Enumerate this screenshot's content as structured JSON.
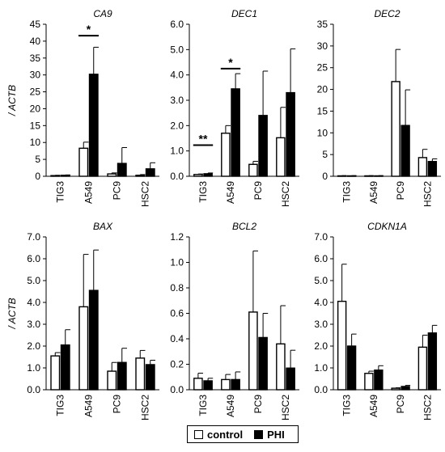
{
  "chart_data": [
    {
      "type": "bar",
      "title": "CA9",
      "ylabel": "/ ACTB",
      "ylim": [
        0,
        45
      ],
      "yticks": [
        "0",
        "5",
        "10",
        "15",
        "20",
        "25",
        "30",
        "35",
        "40",
        "45"
      ],
      "categories": [
        "TIG3",
        "A549",
        "PC9",
        "HSC2"
      ],
      "series": [
        {
          "name": "control",
          "values": [
            0.2,
            8.3,
            0.7,
            0.3
          ],
          "errors": [
            0.1,
            1.8,
            0.3,
            0.2
          ]
        },
        {
          "name": "PHI",
          "values": [
            0.3,
            30.2,
            3.8,
            2.2
          ],
          "errors": [
            0.1,
            8.0,
            4.7,
            1.8
          ]
        }
      ],
      "annotations": [
        {
          "text": "*",
          "category": "A549"
        }
      ]
    },
    {
      "type": "bar",
      "title": "DEC1",
      "ylabel": "",
      "ylim": [
        0,
        6
      ],
      "yticks": [
        "0.0",
        "1.0",
        "2.0",
        "3.0",
        "4.0",
        "5.0",
        "6.0"
      ],
      "categories": [
        "TIG3",
        "A549",
        "PC9",
        "HSC2"
      ],
      "series": [
        {
          "name": "control",
          "values": [
            0.07,
            1.7,
            0.47,
            1.52
          ],
          "errors": [
            0.02,
            0.3,
            0.12,
            1.2
          ]
        },
        {
          "name": "PHI",
          "values": [
            0.1,
            3.45,
            2.4,
            3.3
          ],
          "errors": [
            0.03,
            0.6,
            1.75,
            1.73
          ]
        }
      ],
      "annotations": [
        {
          "text": "**",
          "category": "TIG3"
        },
        {
          "text": "*",
          "category": "A549"
        }
      ]
    },
    {
      "type": "bar",
      "title": "DEC2",
      "ylabel": "",
      "ylim": [
        0,
        35
      ],
      "yticks": [
        "0",
        "5",
        "10",
        "15",
        "20",
        "25",
        "30",
        "35"
      ],
      "categories": [
        "TIG3",
        "A549",
        "PC9",
        "HSC2"
      ],
      "series": [
        {
          "name": "control",
          "values": [
            0.1,
            0.1,
            21.8,
            4.3
          ],
          "errors": [
            0.05,
            0.05,
            7.4,
            1.9
          ]
        },
        {
          "name": "PHI",
          "values": [
            0.1,
            0.1,
            11.7,
            3.4
          ],
          "errors": [
            0.05,
            0.05,
            8.2,
            0.6
          ]
        }
      ],
      "annotations": []
    },
    {
      "type": "bar",
      "title": "BAX",
      "ylabel": "/ ACTB",
      "ylim": [
        0,
        7
      ],
      "yticks": [
        "0.0",
        "1.0",
        "2.0",
        "3.0",
        "4.0",
        "5.0",
        "6.0",
        "7.0"
      ],
      "categories": [
        "TIG3",
        "A549",
        "PC9",
        "HSC2"
      ],
      "series": [
        {
          "name": "control",
          "values": [
            1.55,
            3.8,
            0.85,
            1.45
          ],
          "errors": [
            0.15,
            2.4,
            0.4,
            0.35
          ]
        },
        {
          "name": "PHI",
          "values": [
            2.05,
            4.55,
            1.25,
            1.15
          ],
          "errors": [
            0.7,
            1.85,
            0.65,
            0.2
          ]
        }
      ],
      "annotations": []
    },
    {
      "type": "bar",
      "title": "BCL2",
      "ylabel": "",
      "ylim": [
        0,
        1.2
      ],
      "yticks": [
        "0.0",
        "0.2",
        "0.4",
        "0.6",
        "0.8",
        "1.0",
        "1.2"
      ],
      "categories": [
        "TIG3",
        "A549",
        "PC9",
        "HSC2"
      ],
      "series": [
        {
          "name": "control",
          "values": [
            0.09,
            0.08,
            0.61,
            0.36
          ],
          "errors": [
            0.04,
            0.04,
            0.48,
            0.3
          ]
        },
        {
          "name": "PHI",
          "values": [
            0.07,
            0.08,
            0.41,
            0.17
          ],
          "errors": [
            0.02,
            0.06,
            0.19,
            0.14
          ]
        }
      ],
      "annotations": []
    },
    {
      "type": "bar",
      "title": "CDKN1A",
      "ylabel": "",
      "ylim": [
        0,
        7
      ],
      "yticks": [
        "0.0",
        "1.0",
        "2.0",
        "3.0",
        "4.0",
        "5.0",
        "6.0",
        "7.0"
      ],
      "categories": [
        "TIG3",
        "A549",
        "PC9",
        "HSC2"
      ],
      "series": [
        {
          "name": "control",
          "values": [
            4.05,
            0.75,
            0.07,
            1.95
          ],
          "errors": [
            1.7,
            0.1,
            0.02,
            0.55
          ]
        },
        {
          "name": "PHI",
          "values": [
            2.0,
            0.9,
            0.15,
            2.6
          ],
          "errors": [
            0.55,
            0.2,
            0.05,
            0.35
          ]
        }
      ],
      "annotations": []
    }
  ],
  "legend": {
    "control": "control",
    "phi": "PHI"
  },
  "colors": {
    "control": "#ffffff",
    "phi": "#000000",
    "stroke": "#000000"
  }
}
